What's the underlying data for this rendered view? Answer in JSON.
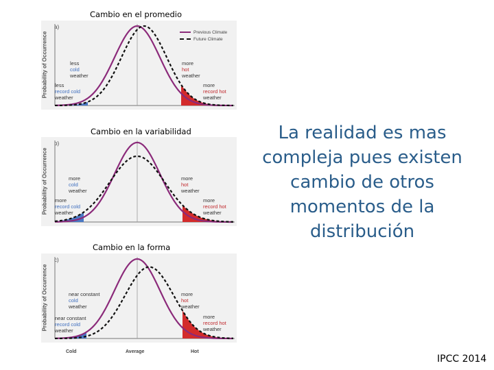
{
  "captions": {
    "a": "Cambio en el promedio",
    "b": "Cambio en la variabilidad",
    "c": "Cambio en la forma"
  },
  "y_axis_label": "Probability of Occurrence",
  "legend": {
    "previous": "Previous Climate",
    "future": "Future Climate"
  },
  "panels": [
    {
      "letter": "a)",
      "left_mid": [
        "less",
        "cold",
        "weather"
      ],
      "left_low": [
        "less",
        "record cold",
        "weather"
      ],
      "right_mid": [
        "more",
        "hot",
        "weather"
      ],
      "right_low": [
        "more",
        "record hot",
        "weather"
      ]
    },
    {
      "letter": "b)",
      "left_mid": [
        "more",
        "cold",
        "weather"
      ],
      "left_low": [
        "more",
        "record cold",
        "weather"
      ],
      "right_mid": [
        "more",
        "hot",
        "weather"
      ],
      "right_low": [
        "more",
        "record hot",
        "weather"
      ]
    },
    {
      "letter": "c)",
      "left_mid": [
        "near constant",
        "cold",
        "weather"
      ],
      "left_low": [
        "near constant",
        "record cold",
        "weather"
      ],
      "right_mid": [
        "more",
        "hot",
        "weather"
      ],
      "right_low": [
        "more",
        "record hot",
        "weather"
      ]
    }
  ],
  "x_axis_labels": {
    "cold": "Cold",
    "average": "Average",
    "hot": "Hot"
  },
  "main_text": "La realidad es mas compleja pues existen cambio de otros momentos de la distribución",
  "source": "IPCC 2014",
  "colors": {
    "previous": "#8b2a7a",
    "future": "#111111",
    "cold_fill": "#4a78c4",
    "hot_fill": "#d32b2b",
    "text_blue": "#2a5d8a"
  }
}
